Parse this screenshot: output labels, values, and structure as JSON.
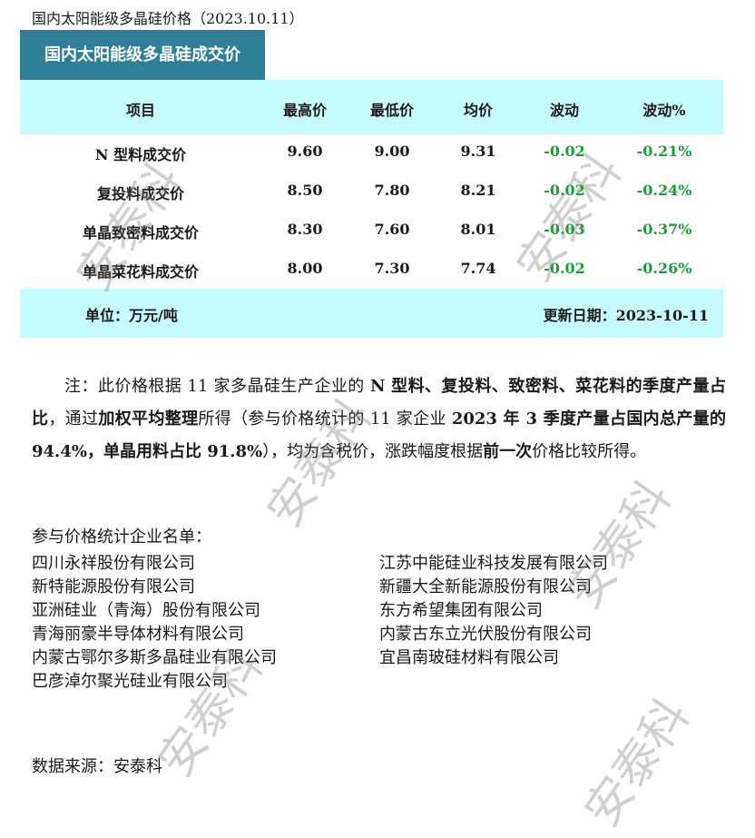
{
  "title": "国内太阳能级多晶硅价格（2023.10.11）",
  "table_title": "国内太阳能级多晶硅成交价",
  "headers": [
    "项目",
    "最高价",
    "最低价",
    "均价",
    "波动",
    "波动%"
  ],
  "rows": [
    [
      "N 型料成交价",
      "9.60",
      "9.00",
      "9.31",
      "-0.02",
      "-0.21%"
    ],
    [
      "复投料成交价",
      "8.50",
      "7.80",
      "8.21",
      "-0.02",
      "-0.24%"
    ],
    [
      "单晶致密料成交价",
      "8.30",
      "7.60",
      "8.01",
      "-0.03",
      "-0.37%"
    ],
    [
      "单晶菜花料成交价",
      "8.00",
      "7.30",
      "7.74",
      "-0.02",
      "-0.26%"
    ]
  ],
  "unit": "单位：万元/吨",
  "updated": "更新日期：2023-10-11",
  "change_color": "#1a9e3a",
  "note": [
    {
      "t": "注：此价格根据 11 家多晶硅生产企业的 ",
      "b": false
    },
    {
      "t": "N 型料、复投料、致密料、菜花料的季度产量占比",
      "b": true
    },
    {
      "t": "，通过",
      "b": false
    },
    {
      "t": "加权平均整理",
      "b": true
    },
    {
      "t": "所得（参与价格统计的 11 家企业 ",
      "b": false
    },
    {
      "t": "2023 年 3 季度产量占国内总产量的 94.4%，单晶用料占比 91.8%",
      "b": true
    },
    {
      "t": "），均为含税价，涨跌幅度根据",
      "b": false
    },
    {
      "t": "前一次",
      "b": true
    },
    {
      "t": "价格比较所得。",
      "b": false
    }
  ],
  "list_title": "参与价格统计企业名单：",
  "companies_left": [
    "四川永祥股份有限公司",
    "新特能源股份有限公司",
    "亚洲硅业（青海）股份有限公司",
    "青海丽豪半导体材料有限公司",
    "内蒙古鄂尔多斯多晶硅业有限公司",
    "巴彦淖尔聚光硅业有限公司"
  ],
  "companies_right": [
    "江苏中能硅业科技发展有限公司",
    "新疆大全新能源股份有限公司",
    "东方希望集团有限公司",
    "内蒙古东立光伏股份有限公司",
    "宜昌南玻硅材料有限公司"
  ],
  "source": "数据来源：安泰科",
  "watermark": "安泰科"
}
